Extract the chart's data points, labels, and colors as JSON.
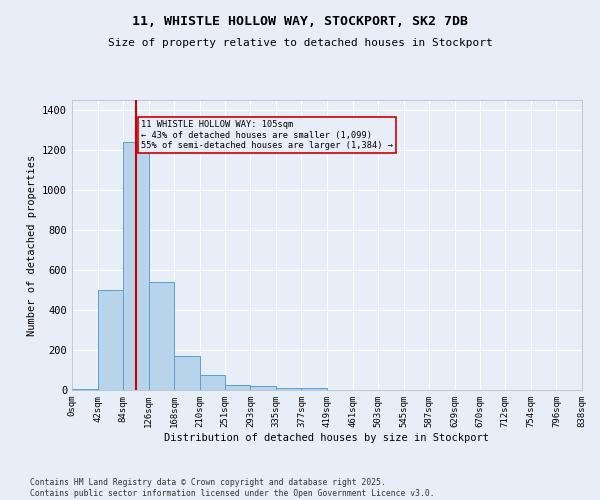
{
  "title_line1": "11, WHISTLE HOLLOW WAY, STOCKPORT, SK2 7DB",
  "title_line2": "Size of property relative to detached houses in Stockport",
  "xlabel": "Distribution of detached houses by size in Stockport",
  "ylabel": "Number of detached properties",
  "bar_edges": [
    0,
    42,
    84,
    126,
    168,
    210,
    251,
    293,
    335,
    377,
    419,
    461,
    503,
    545,
    587,
    629,
    670,
    712,
    754,
    796,
    838
  ],
  "bar_heights": [
    5,
    500,
    1240,
    540,
    170,
    75,
    25,
    20,
    12,
    10,
    0,
    0,
    0,
    0,
    0,
    0,
    0,
    0,
    0,
    0
  ],
  "bar_color": "#b8d4ea",
  "bar_edge_color": "#5a9fd4",
  "property_size": 105,
  "property_line_color": "#cc0000",
  "annotation_text": "11 WHISTLE HOLLOW WAY: 105sqm\n← 43% of detached houses are smaller (1,099)\n55% of semi-detached houses are larger (1,384) →",
  "ylim": [
    0,
    1450
  ],
  "yticks": [
    0,
    200,
    400,
    600,
    800,
    1000,
    1200,
    1400
  ],
  "background_color": "#e8eef8",
  "grid_color": "#ffffff",
  "footer_line1": "Contains HM Land Registry data © Crown copyright and database right 2025.",
  "footer_line2": "Contains public sector information licensed under the Open Government Licence v3.0."
}
